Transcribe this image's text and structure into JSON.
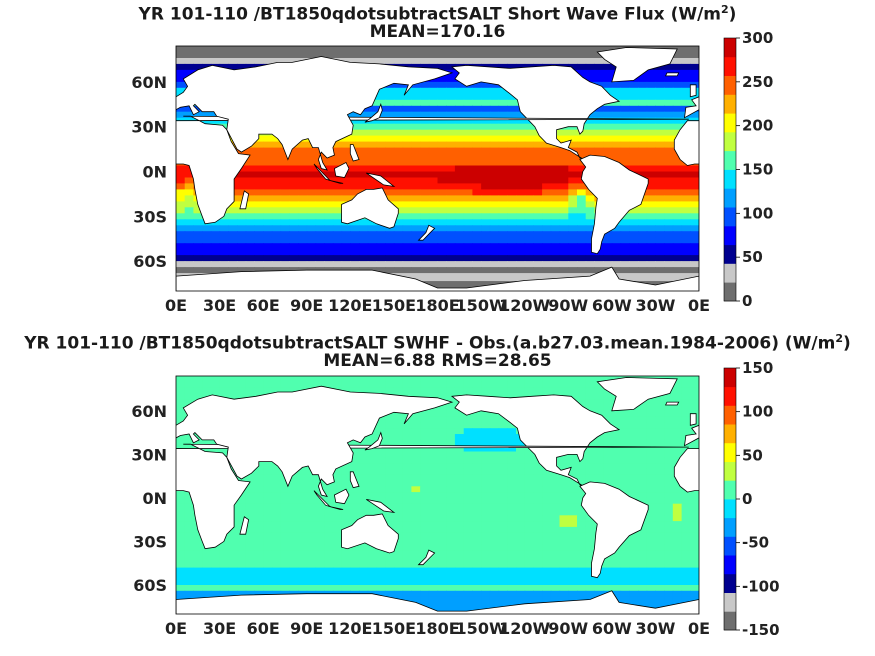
{
  "colors": {
    "land": "#ffffff",
    "palette": [
      "#6e6e6e",
      "#c8c8c8",
      "#00008f",
      "#0000ff",
      "#0050ff",
      "#009fff",
      "#00e0ff",
      "#50ffaf",
      "#c0ff40",
      "#ffff00",
      "#ffb000",
      "#ff6000",
      "#ff1000",
      "#cc0000"
    ]
  },
  "chart_data": [
    {
      "type": "heatmap",
      "title_line1": "YR 101-110 /BT1850qdotsubtractSALT  Short Wave Flux (W/m",
      "title_sup": "2",
      "title_line1_end": ")",
      "title_line2": "MEAN=170.16",
      "x_ticks": [
        "0E",
        "30E",
        "60E",
        "90E",
        "120E",
        "150E",
        "180E",
        "150W",
        "120W",
        "90W",
        "60W",
        "30W",
        "0E"
      ],
      "y_ticks": [
        "60N",
        "30N",
        "0N",
        "30S",
        "60S"
      ],
      "colorbar_ticks": [
        "300",
        "250",
        "200",
        "150",
        "100",
        "50",
        "0"
      ],
      "colorbar_range": [
        0,
        300
      ],
      "field": "shortwave_flux"
    },
    {
      "type": "heatmap",
      "title_line1": "YR 101-110 /BT1850qdotsubtractSALT SWHF - Obs.(a.b27.03.mean.1984-2006) (W/m",
      "title_sup": "2",
      "title_line1_end": ")",
      "title_line2": "MEAN=6.88 RMS=28.65",
      "x_ticks": [
        "0E",
        "30E",
        "60E",
        "90E",
        "120E",
        "150E",
        "180E",
        "150W",
        "120W",
        "90W",
        "60W",
        "30W",
        "0E"
      ],
      "y_ticks": [
        "60N",
        "30N",
        "0N",
        "30S",
        "60S"
      ],
      "colorbar_ticks": [
        "150",
        "100",
        "50",
        "0",
        "-50",
        "-100",
        "-150"
      ],
      "colorbar_range": [
        -150,
        150
      ],
      "field": "difference"
    }
  ]
}
